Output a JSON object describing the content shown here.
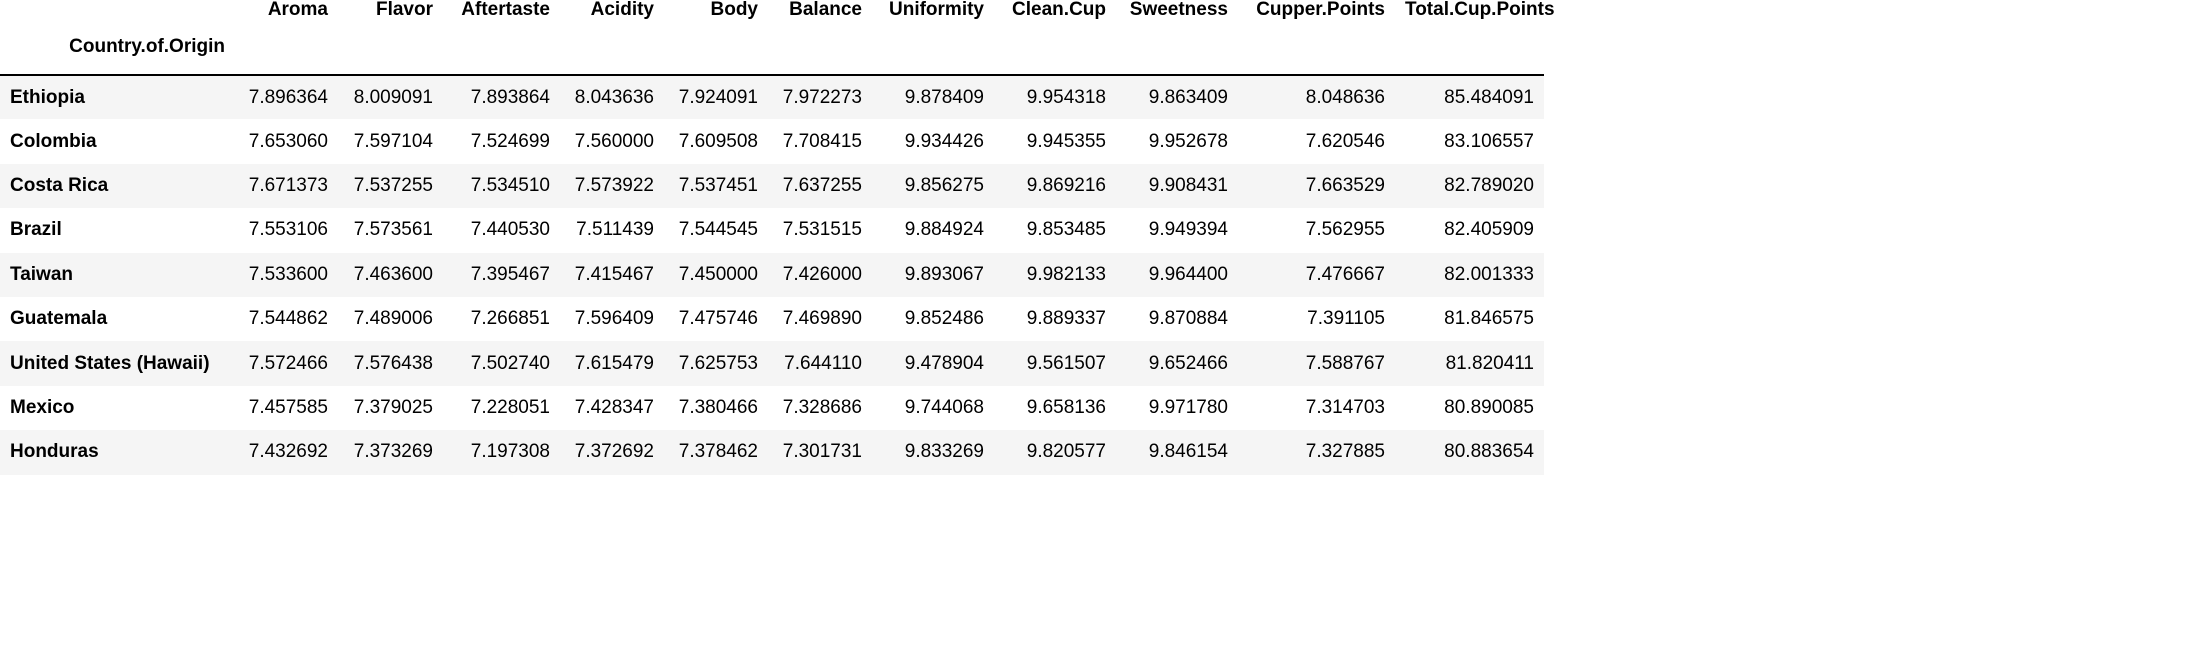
{
  "table": {
    "index_name": "Country.of.Origin",
    "columns": [
      "Aroma",
      "Flavor",
      "Aftertaste",
      "Acidity",
      "Body",
      "Balance",
      "Uniformity",
      "Clean.Cup",
      "Sweetness",
      "Cupper.Points",
      "Total.Cup.Points"
    ],
    "rows": [
      {
        "country": "Ethiopia",
        "values": [
          "7.896364",
          "8.009091",
          "7.893864",
          "8.043636",
          "7.924091",
          "7.972273",
          "9.878409",
          "9.954318",
          "9.863409",
          "8.048636",
          "85.484091"
        ]
      },
      {
        "country": "Colombia",
        "values": [
          "7.653060",
          "7.597104",
          "7.524699",
          "7.560000",
          "7.609508",
          "7.708415",
          "9.934426",
          "9.945355",
          "9.952678",
          "7.620546",
          "83.106557"
        ]
      },
      {
        "country": "Costa Rica",
        "values": [
          "7.671373",
          "7.537255",
          "7.534510",
          "7.573922",
          "7.537451",
          "7.637255",
          "9.856275",
          "9.869216",
          "9.908431",
          "7.663529",
          "82.789020"
        ]
      },
      {
        "country": "Brazil",
        "values": [
          "7.553106",
          "7.573561",
          "7.440530",
          "7.511439",
          "7.544545",
          "7.531515",
          "9.884924",
          "9.853485",
          "9.949394",
          "7.562955",
          "82.405909"
        ]
      },
      {
        "country": "Taiwan",
        "values": [
          "7.533600",
          "7.463600",
          "7.395467",
          "7.415467",
          "7.450000",
          "7.426000",
          "9.893067",
          "9.982133",
          "9.964400",
          "7.476667",
          "82.001333"
        ]
      },
      {
        "country": "Guatemala",
        "values": [
          "7.544862",
          "7.489006",
          "7.266851",
          "7.596409",
          "7.475746",
          "7.469890",
          "9.852486",
          "9.889337",
          "9.870884",
          "7.391105",
          "81.846575"
        ]
      },
      {
        "country": "United States (Hawaii)",
        "values": [
          "7.572466",
          "7.576438",
          "7.502740",
          "7.615479",
          "7.625753",
          "7.644110",
          "9.478904",
          "9.561507",
          "9.652466",
          "7.588767",
          "81.820411"
        ]
      },
      {
        "country": "Mexico",
        "values": [
          "7.457585",
          "7.379025",
          "7.228051",
          "7.428347",
          "7.380466",
          "7.328686",
          "9.744068",
          "9.658136",
          "9.971780",
          "7.314703",
          "80.890085"
        ]
      },
      {
        "country": "Honduras",
        "values": [
          "7.432692",
          "7.373269",
          "7.197308",
          "7.372692",
          "7.378462",
          "7.301731",
          "9.833269",
          "9.820577",
          "9.846154",
          "7.327885",
          "80.883654"
        ]
      }
    ]
  }
}
